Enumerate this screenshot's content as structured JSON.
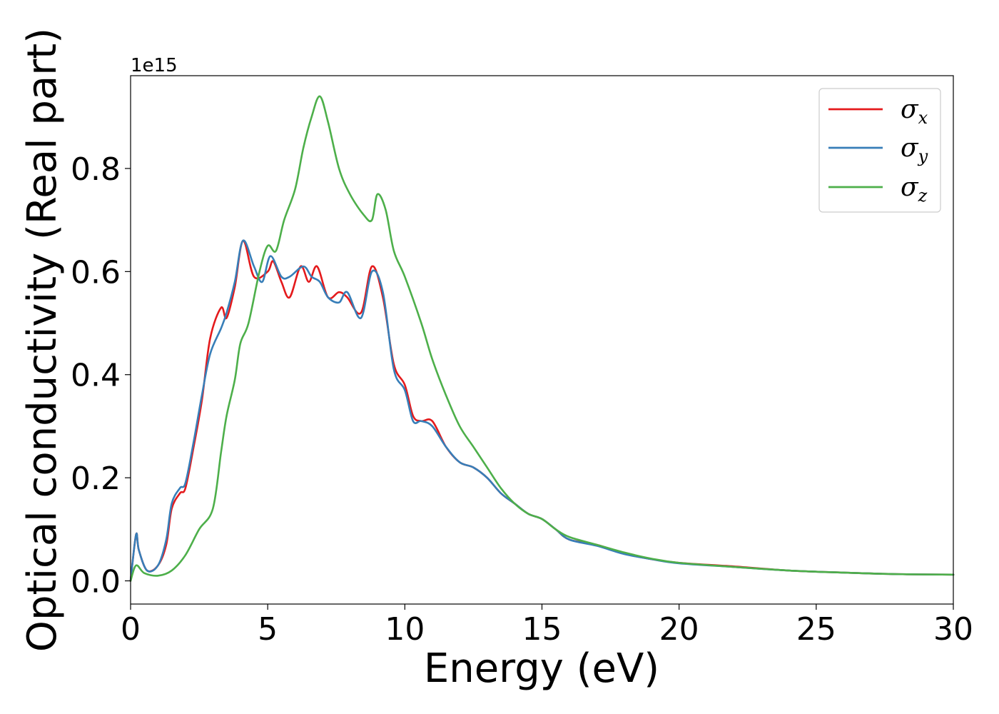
{
  "chart_data": {
    "type": "line",
    "xlabel": "Energy (eV)",
    "ylabel": "Optical conductivity (Real part)",
    "y_offset_label": "1e15",
    "xlim": [
      0,
      30
    ],
    "ylim": [
      -0.045,
      0.98
    ],
    "xticks": [
      0,
      5,
      10,
      15,
      20,
      25,
      30
    ],
    "xtick_labels": [
      "0",
      "5",
      "10",
      "15",
      "20",
      "25",
      "30"
    ],
    "yticks": [
      0.0,
      0.2,
      0.4,
      0.6,
      0.8
    ],
    "ytick_labels": [
      "0.0",
      "0.2",
      "0.4",
      "0.6",
      "0.8"
    ],
    "grid": false,
    "legend_position": "top-right",
    "series": [
      {
        "name": "σx",
        "label_base": "σ",
        "label_sub": "x",
        "color": "#e41a1c",
        "x": [
          0,
          0.2,
          0.3,
          0.6,
          1.0,
          1.3,
          1.5,
          1.8,
          2.0,
          2.3,
          2.6,
          2.9,
          3.3,
          3.5,
          3.8,
          4.1,
          4.5,
          5.0,
          5.2,
          5.5,
          5.8,
          6.2,
          6.5,
          6.8,
          7.2,
          7.6,
          7.9,
          8.4,
          8.8,
          9.2,
          9.6,
          10.0,
          10.3,
          10.6,
          11.0,
          11.5,
          12.0,
          12.5,
          13.0,
          13.5,
          14.0,
          14.5,
          15.0,
          15.5,
          16.0,
          17.0,
          18.0,
          19.0,
          20.0,
          22.0,
          24.0,
          26.0,
          28.0,
          30.0
        ],
        "y": [
          0.0,
          0.09,
          0.06,
          0.02,
          0.03,
          0.07,
          0.14,
          0.17,
          0.18,
          0.26,
          0.35,
          0.47,
          0.53,
          0.51,
          0.57,
          0.66,
          0.59,
          0.6,
          0.62,
          0.58,
          0.55,
          0.61,
          0.58,
          0.61,
          0.55,
          0.56,
          0.55,
          0.52,
          0.61,
          0.55,
          0.42,
          0.38,
          0.32,
          0.31,
          0.31,
          0.26,
          0.23,
          0.22,
          0.2,
          0.17,
          0.15,
          0.13,
          0.12,
          0.1,
          0.08,
          0.07,
          0.053,
          0.042,
          0.035,
          0.028,
          0.02,
          0.016,
          0.013,
          0.012
        ]
      },
      {
        "name": "σy",
        "label_base": "σ",
        "label_sub": "y",
        "color": "#377eb8",
        "x": [
          0,
          0.2,
          0.3,
          0.6,
          1.0,
          1.3,
          1.5,
          1.8,
          2.0,
          2.3,
          2.6,
          2.9,
          3.3,
          3.5,
          3.8,
          4.1,
          4.5,
          4.8,
          5.1,
          5.5,
          5.8,
          6.3,
          6.6,
          6.9,
          7.2,
          7.6,
          7.9,
          8.4,
          8.8,
          9.2,
          9.6,
          10.0,
          10.3,
          10.6,
          11.0,
          11.5,
          12.0,
          12.5,
          13.0,
          13.5,
          14.0,
          14.5,
          15.0,
          15.5,
          16.0,
          17.0,
          18.0,
          19.0,
          20.0,
          22.0,
          24.0,
          26.0,
          28.0,
          30.0
        ],
        "y": [
          0.0,
          0.09,
          0.06,
          0.02,
          0.03,
          0.08,
          0.15,
          0.18,
          0.19,
          0.27,
          0.36,
          0.44,
          0.49,
          0.52,
          0.58,
          0.66,
          0.61,
          0.58,
          0.63,
          0.59,
          0.59,
          0.61,
          0.59,
          0.58,
          0.55,
          0.54,
          0.56,
          0.51,
          0.6,
          0.56,
          0.41,
          0.37,
          0.31,
          0.31,
          0.3,
          0.26,
          0.23,
          0.22,
          0.2,
          0.17,
          0.15,
          0.13,
          0.12,
          0.1,
          0.08,
          0.068,
          0.052,
          0.042,
          0.034,
          0.027,
          0.02,
          0.016,
          0.013,
          0.012
        ]
      },
      {
        "name": "σz",
        "label_base": "σ",
        "label_sub": "z",
        "color": "#4daf4a",
        "x": [
          0,
          0.2,
          0.5,
          1.0,
          1.5,
          2.0,
          2.5,
          3.0,
          3.3,
          3.5,
          3.8,
          4.0,
          4.3,
          4.7,
          5.0,
          5.3,
          5.6,
          6.0,
          6.3,
          6.6,
          6.9,
          7.2,
          7.6,
          8.0,
          8.5,
          8.8,
          9.0,
          9.3,
          9.6,
          10.0,
          10.6,
          11.0,
          11.5,
          12.0,
          12.5,
          13.0,
          13.5,
          14.0,
          14.5,
          15.0,
          15.5,
          16.0,
          17.0,
          18.0,
          19.0,
          20.0,
          22.0,
          24.0,
          26.0,
          28.0,
          30.0
        ],
        "y": [
          0.0,
          0.03,
          0.015,
          0.01,
          0.02,
          0.05,
          0.1,
          0.14,
          0.25,
          0.32,
          0.39,
          0.46,
          0.5,
          0.6,
          0.65,
          0.64,
          0.7,
          0.76,
          0.84,
          0.9,
          0.94,
          0.89,
          0.8,
          0.75,
          0.71,
          0.7,
          0.75,
          0.72,
          0.64,
          0.59,
          0.5,
          0.43,
          0.36,
          0.3,
          0.26,
          0.22,
          0.18,
          0.15,
          0.13,
          0.12,
          0.1,
          0.085,
          0.07,
          0.055,
          0.043,
          0.035,
          0.027,
          0.02,
          0.016,
          0.013,
          0.012
        ]
      }
    ]
  }
}
